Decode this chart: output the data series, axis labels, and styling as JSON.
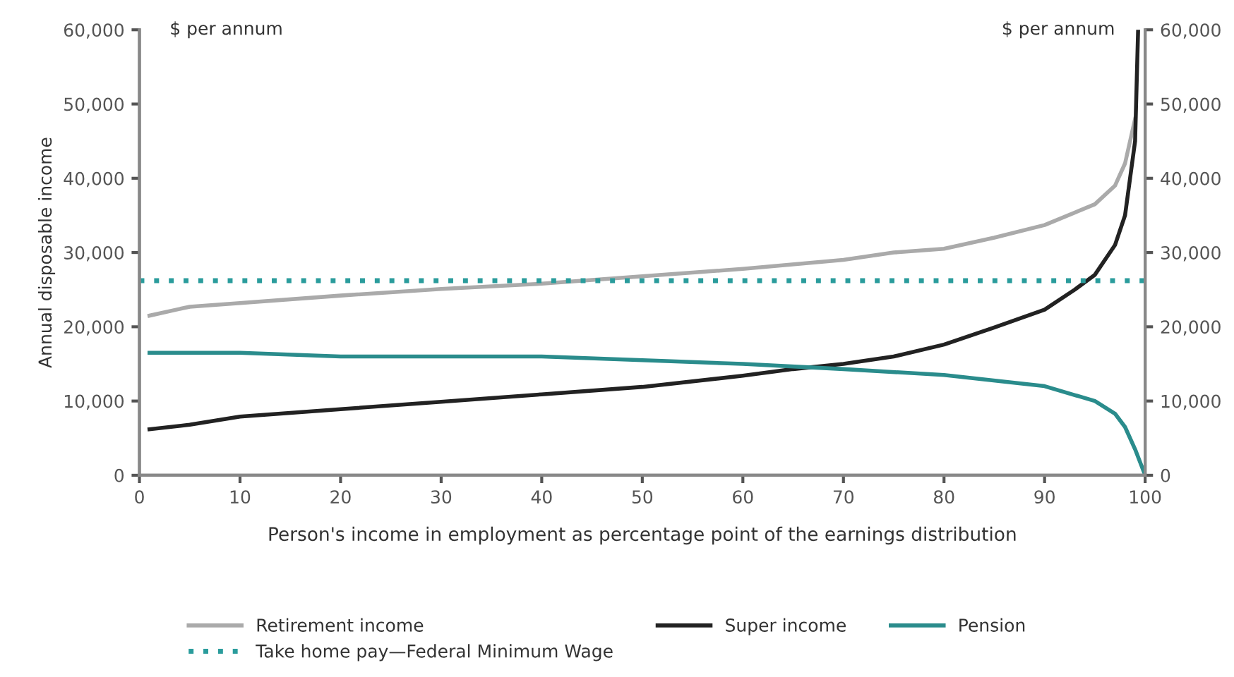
{
  "chart_data": {
    "type": "line",
    "xlabel": "Person's income in employment as percentage point of the earnings distribution",
    "ylabel": "Annual disposable income",
    "annotations": [
      "$ per annum",
      "$ per annum"
    ],
    "series": [
      {
        "name": "Retirement income",
        "color": "#aaaaaa",
        "x": [
          1,
          5,
          10,
          20,
          30,
          40,
          50,
          60,
          70,
          75,
          80,
          85,
          90,
          95,
          97,
          98,
          99
        ],
        "values": [
          21500,
          22700,
          23200,
          24200,
          25100,
          25800,
          26800,
          27800,
          29000,
          30000,
          30500,
          32000,
          33700,
          36500,
          39000,
          42000,
          48000
        ]
      },
      {
        "name": "Super income",
        "color": "#222222",
        "x": [
          1,
          5,
          10,
          20,
          30,
          40,
          50,
          60,
          65,
          70,
          75,
          80,
          85,
          90,
          93,
          95,
          97,
          98,
          99,
          99.3
        ],
        "values": [
          6200,
          6800,
          7900,
          8900,
          9900,
          10900,
          11900,
          13400,
          14300,
          15000,
          16000,
          17600,
          19900,
          22300,
          25000,
          27000,
          31000,
          35000,
          45000,
          60000
        ]
      },
      {
        "name": "Pension",
        "color": "#2a8c8c",
        "x": [
          1,
          10,
          20,
          40,
          50,
          60,
          70,
          80,
          90,
          95,
          97,
          98,
          99,
          100
        ],
        "values": [
          16500,
          16500,
          16000,
          16000,
          15500,
          15000,
          14300,
          13500,
          12000,
          10000,
          8300,
          6500,
          3500,
          0
        ]
      }
    ],
    "ref_lines": [
      {
        "axis": "y",
        "value": 26200,
        "label": "Take home pay—Federal Minimum Wage",
        "color": "#2a9c9c",
        "line_style": "dotted"
      }
    ],
    "xlim": [
      0,
      100
    ],
    "xticks": [
      0,
      10,
      20,
      30,
      40,
      50,
      60,
      70,
      80,
      90,
      100
    ],
    "ylim": [
      0,
      60000
    ],
    "yticks": [
      0,
      {
        "value": 10000,
        "label": "10,000"
      },
      {
        "value": 20000,
        "label": "20,000"
      },
      {
        "value": 30000,
        "label": "30,000"
      },
      {
        "value": 40000,
        "label": "40,000"
      },
      {
        "value": 50000,
        "label": "50,000"
      },
      {
        "value": 60000,
        "label": "60,000"
      }
    ],
    "y2lim": [
      0,
      60000
    ],
    "y2ticks": [
      0,
      {
        "value": 10000,
        "label": "10,000"
      },
      {
        "value": 20000,
        "label": "20,000"
      },
      {
        "value": 30000,
        "label": "30,000"
      },
      {
        "value": 40000,
        "label": "40,000"
      },
      {
        "value": 50000,
        "label": "50,000"
      },
      {
        "value": 60000,
        "label": "60,000"
      }
    ],
    "grid": false,
    "legend": "bottom",
    "marker": "none",
    "line_style": "solid"
  }
}
